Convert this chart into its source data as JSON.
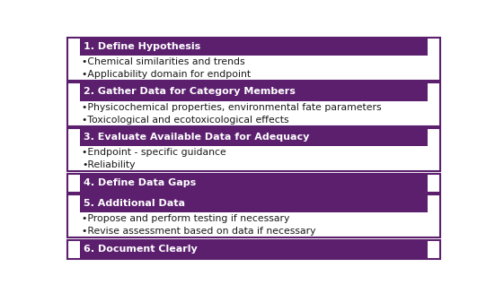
{
  "steps": [
    {
      "header": "1. Define Hypothesis",
      "bullets": [
        "•Chemical similarities and trends",
        "•Applicability domain for endpoint"
      ]
    },
    {
      "header": "2. Gather Data for Category Members",
      "bullets": [
        "•Physicochemical properties, environmental fate parameters",
        "•Toxicological and ecotoxicological effects"
      ]
    },
    {
      "header": "3. Evaluate Available Data for Adequacy",
      "bullets": [
        "•Endpoint - specific guidance",
        "•Reliability"
      ]
    },
    {
      "header": "4. Define Data Gaps",
      "bullets": []
    },
    {
      "header": "5. Additional Data",
      "bullets": [
        "•Propose and perform testing if necessary",
        "•Revise assessment based on data if necessary"
      ]
    },
    {
      "header": "6. Document Clearly",
      "bullets": []
    }
  ],
  "header_bg_color": "#5b1f6e",
  "header_text_color": "#ffffff",
  "box_border_color": "#5b1f6e",
  "box_bg_color": "#ffffff",
  "bullet_text_color": "#1a1a1a",
  "background_color": "#ffffff",
  "header_fontsize": 8.0,
  "bullet_fontsize": 7.8,
  "fig_width": 5.51,
  "fig_height": 3.27
}
